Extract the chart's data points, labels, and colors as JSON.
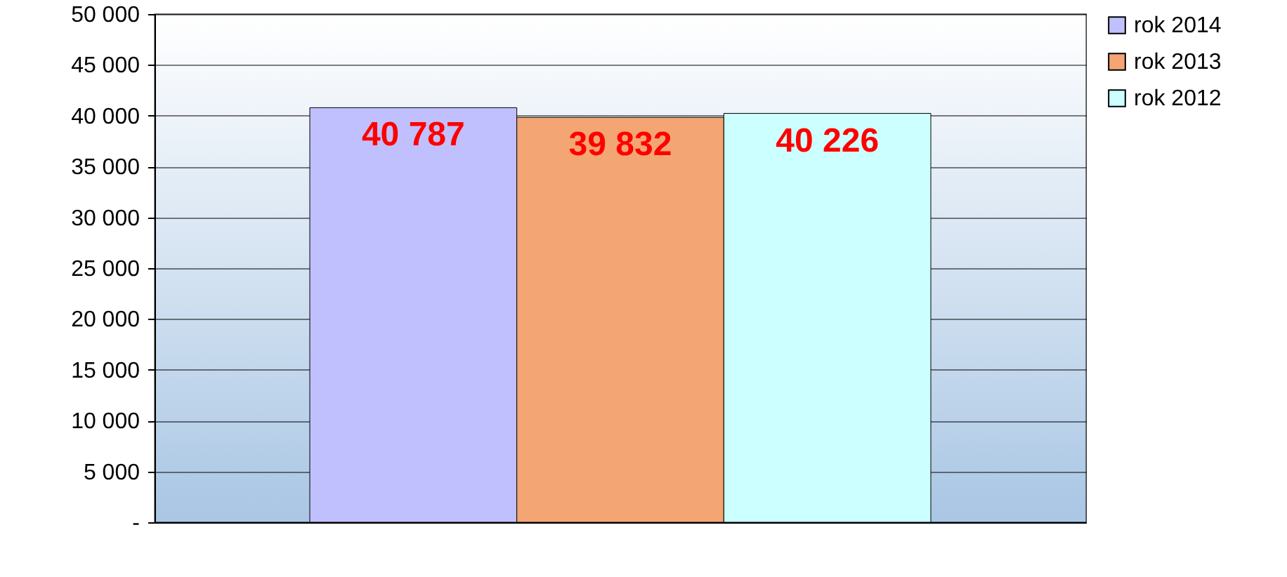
{
  "chart_data": {
    "type": "bar",
    "categories": [
      null
    ],
    "series": [
      {
        "name": "rok 2014",
        "color": "#c0c0ff",
        "values": [
          40787
        ],
        "value_labels": [
          "40 787"
        ]
      },
      {
        "name": "rok 2013",
        "color": "#f4a574",
        "values": [
          39832
        ],
        "value_labels": [
          "39 832"
        ]
      },
      {
        "name": "rok 2012",
        "color": "#ccffff",
        "values": [
          40226
        ],
        "value_labels": [
          "40 226"
        ]
      }
    ],
    "ylim": [
      0,
      50000
    ],
    "yticks": [
      {
        "value": 0,
        "label": "-"
      },
      {
        "value": 5000,
        "label": "5 000"
      },
      {
        "value": 10000,
        "label": "10 000"
      },
      {
        "value": 15000,
        "label": "15 000"
      },
      {
        "value": 20000,
        "label": "20 000"
      },
      {
        "value": 25000,
        "label": "25 000"
      },
      {
        "value": 30000,
        "label": "30 000"
      },
      {
        "value": 35000,
        "label": "35 000"
      },
      {
        "value": 40000,
        "label": "40 000"
      },
      {
        "value": 45000,
        "label": "45 000"
      },
      {
        "value": 50000,
        "label": "50 000"
      }
    ],
    "grid": "y",
    "legend": "right",
    "tick_labels": "y"
  }
}
